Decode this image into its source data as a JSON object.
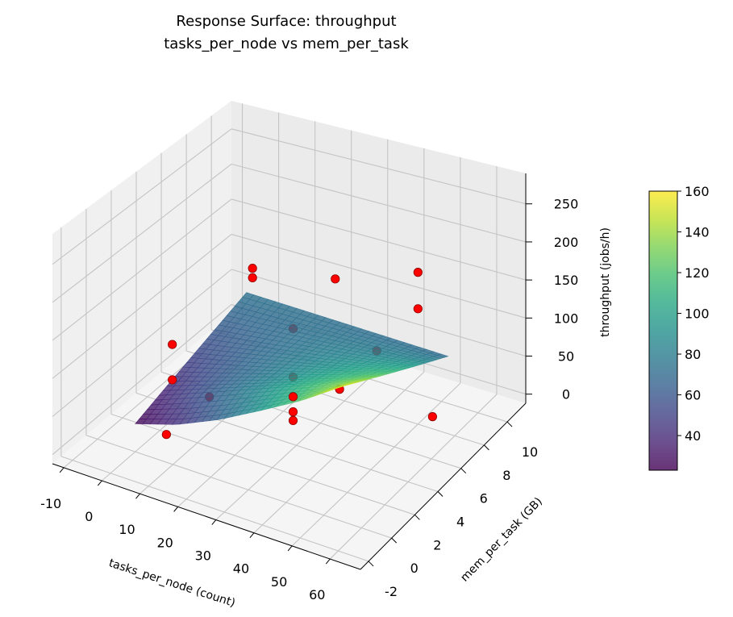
{
  "chart_data": {
    "type": "surface",
    "title_lines": [
      "Response Surface: throughput",
      "tasks_per_node vs mem_per_task"
    ],
    "xlabel": "tasks_per_node (count)",
    "ylabel": "mem_per_task (GB)",
    "zlabel": "throughput (jobs/h)",
    "xlim": [
      -13,
      68
    ],
    "ylim": [
      -2.7,
      11.6
    ],
    "zlim": [
      -12,
      290
    ],
    "xticks": [
      -10,
      0,
      10,
      20,
      30,
      40,
      50,
      60
    ],
    "yticks": [
      -2,
      0,
      2,
      4,
      6,
      8,
      10
    ],
    "zticks": [
      0,
      50,
      100,
      150,
      200,
      250
    ],
    "grid": true,
    "colormap": "viridis",
    "surface_alpha": 0.8,
    "surface": {
      "x": [
        0,
        11,
        22,
        33,
        44,
        55
      ],
      "y": [
        0,
        1.8,
        3.6,
        5.4,
        7.2,
        9
      ],
      "z": [
        [
          25,
          42,
          66,
          95,
          125,
          160
        ],
        [
          35,
          56.4,
          77.8,
          99.2,
          120.6,
          142
        ],
        [
          45,
          60.8,
          76.6,
          92.4,
          108.2,
          124
        ],
        [
          55,
          65.2,
          75.4,
          85.6,
          95.8,
          106
        ],
        [
          65,
          69.6,
          74.2,
          78.8,
          83.4,
          88
        ],
        [
          75,
          74,
          73,
          72,
          71,
          70
        ]
      ]
    },
    "scatter": {
      "color": "#ff0000",
      "points": [
        [
          5,
          8,
          130
        ],
        [
          5,
          8,
          117
        ],
        [
          27.5,
          8,
          148
        ],
        [
          50,
          8,
          188
        ],
        [
          50,
          8,
          140
        ],
        [
          -5,
          4.5,
          60
        ],
        [
          -5,
          4.5,
          12
        ],
        [
          5,
          4.5,
          5
        ],
        [
          5,
          1,
          5
        ],
        [
          27.5,
          4.5,
          131
        ],
        [
          50,
          4.5,
          135
        ],
        [
          27.5,
          4.5,
          67
        ],
        [
          27.5,
          4.5,
          41
        ],
        [
          40,
          4.5,
          70
        ],
        [
          27.5,
          4.5,
          21
        ],
        [
          27.5,
          4.5,
          9.5
        ],
        [
          65,
          4.5,
          72
        ]
      ]
    },
    "colorbar": {
      "range": [
        23,
        160
      ],
      "ticks": [
        40,
        60,
        80,
        100,
        120,
        140,
        160
      ]
    }
  }
}
